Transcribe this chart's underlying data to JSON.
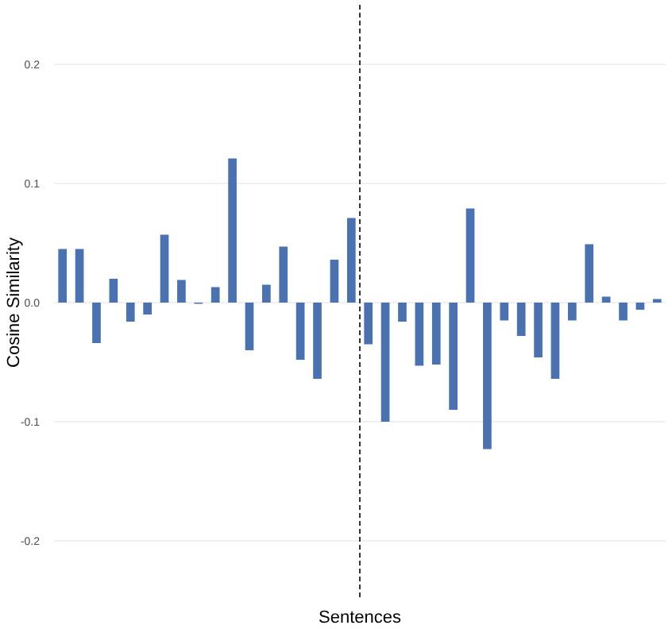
{
  "chart_data": {
    "type": "bar",
    "xlabel": "Sentences",
    "ylabel": "Cosine Similarity",
    "categories": [
      null,
      null,
      null,
      null,
      null,
      null,
      null,
      null,
      null,
      null,
      null,
      null,
      null,
      null,
      null,
      null,
      null,
      null,
      null,
      null,
      null,
      null,
      null,
      null,
      null,
      null,
      null,
      null,
      null,
      null,
      null,
      null,
      null,
      null,
      null,
      null
    ],
    "values": [
      0.045,
      0.045,
      -0.034,
      0.02,
      -0.016,
      -0.01,
      0.057,
      0.019,
      -0.001,
      0.013,
      0.121,
      -0.04,
      0.015,
      0.047,
      -0.048,
      -0.064,
      0.036,
      0.071,
      -0.035,
      -0.1,
      -0.016,
      -0.053,
      -0.052,
      -0.09,
      0.079,
      -0.123,
      -0.015,
      -0.028,
      -0.046,
      -0.064,
      -0.015,
      0.049,
      0.005,
      -0.015,
      -0.006,
      0.003
    ],
    "color": "#4a72b0",
    "ylim": [
      -0.25,
      0.25
    ],
    "yticks": [
      {
        "value": -0.2,
        "label": "-0.2"
      },
      {
        "value": -0.1,
        "label": "-0.1"
      },
      {
        "value": 0,
        "label": "0.0"
      },
      {
        "value": 0.1,
        "label": "0.1"
      },
      {
        "value": 0.2,
        "label": "0.2"
      }
    ],
    "grid": "y"
  }
}
